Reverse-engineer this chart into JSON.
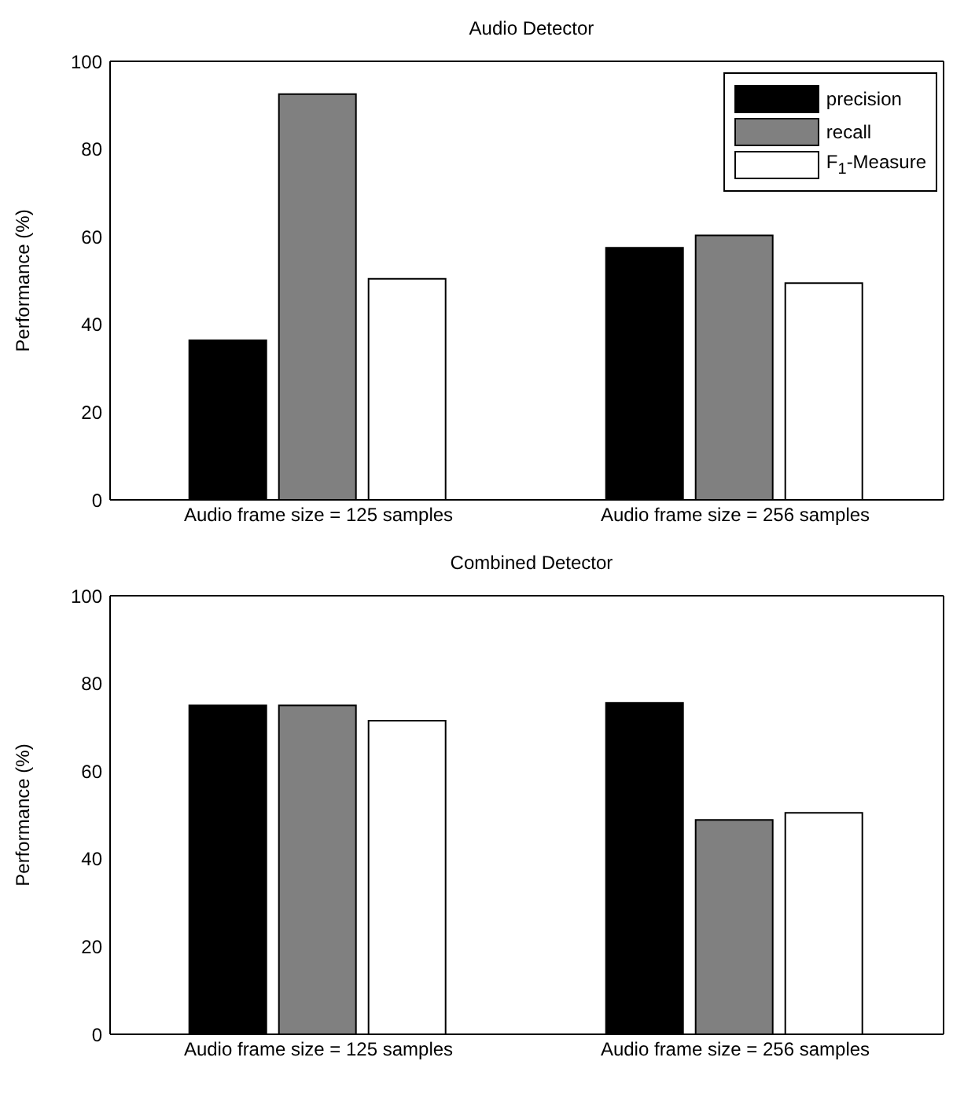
{
  "chart_data": [
    {
      "type": "bar",
      "title": "Audio Detector",
      "ylabel": "Performance (%)",
      "categories": [
        "Audio frame size = 125 samples",
        "Audio frame size = 256 samples"
      ],
      "series": [
        {
          "name": "precision",
          "color": "#000000",
          "values": [
            36.4,
            57.5
          ]
        },
        {
          "name": "recall",
          "color": "#808080",
          "values": [
            92.5,
            60.3
          ]
        },
        {
          "name": "F$_{1}$-Measure",
          "color": "#ffffff",
          "values": [
            50.4,
            49.4
          ]
        }
      ],
      "ylim": [
        0,
        100
      ],
      "yticks": [
        0,
        20,
        40,
        60,
        80,
        100
      ],
      "grid": false,
      "legend": "top right"
    },
    {
      "type": "bar",
      "title": "Combined Detector",
      "ylabel": "Performance (%)",
      "categories": [
        "Audio frame size = 125 samples",
        "Audio frame size = 256 samples"
      ],
      "series": [
        {
          "color": "#000000",
          "values": [
            75.0,
            75.6
          ]
        },
        {
          "color": "#808080",
          "values": [
            75.0,
            48.9
          ]
        },
        {
          "color": "#ffffff",
          "values": [
            71.5,
            50.5
          ]
        }
      ],
      "ylim": [
        0,
        100
      ],
      "yticks": [
        0,
        20,
        40,
        60,
        80,
        100
      ],
      "grid": false,
      "legend": false
    }
  ]
}
